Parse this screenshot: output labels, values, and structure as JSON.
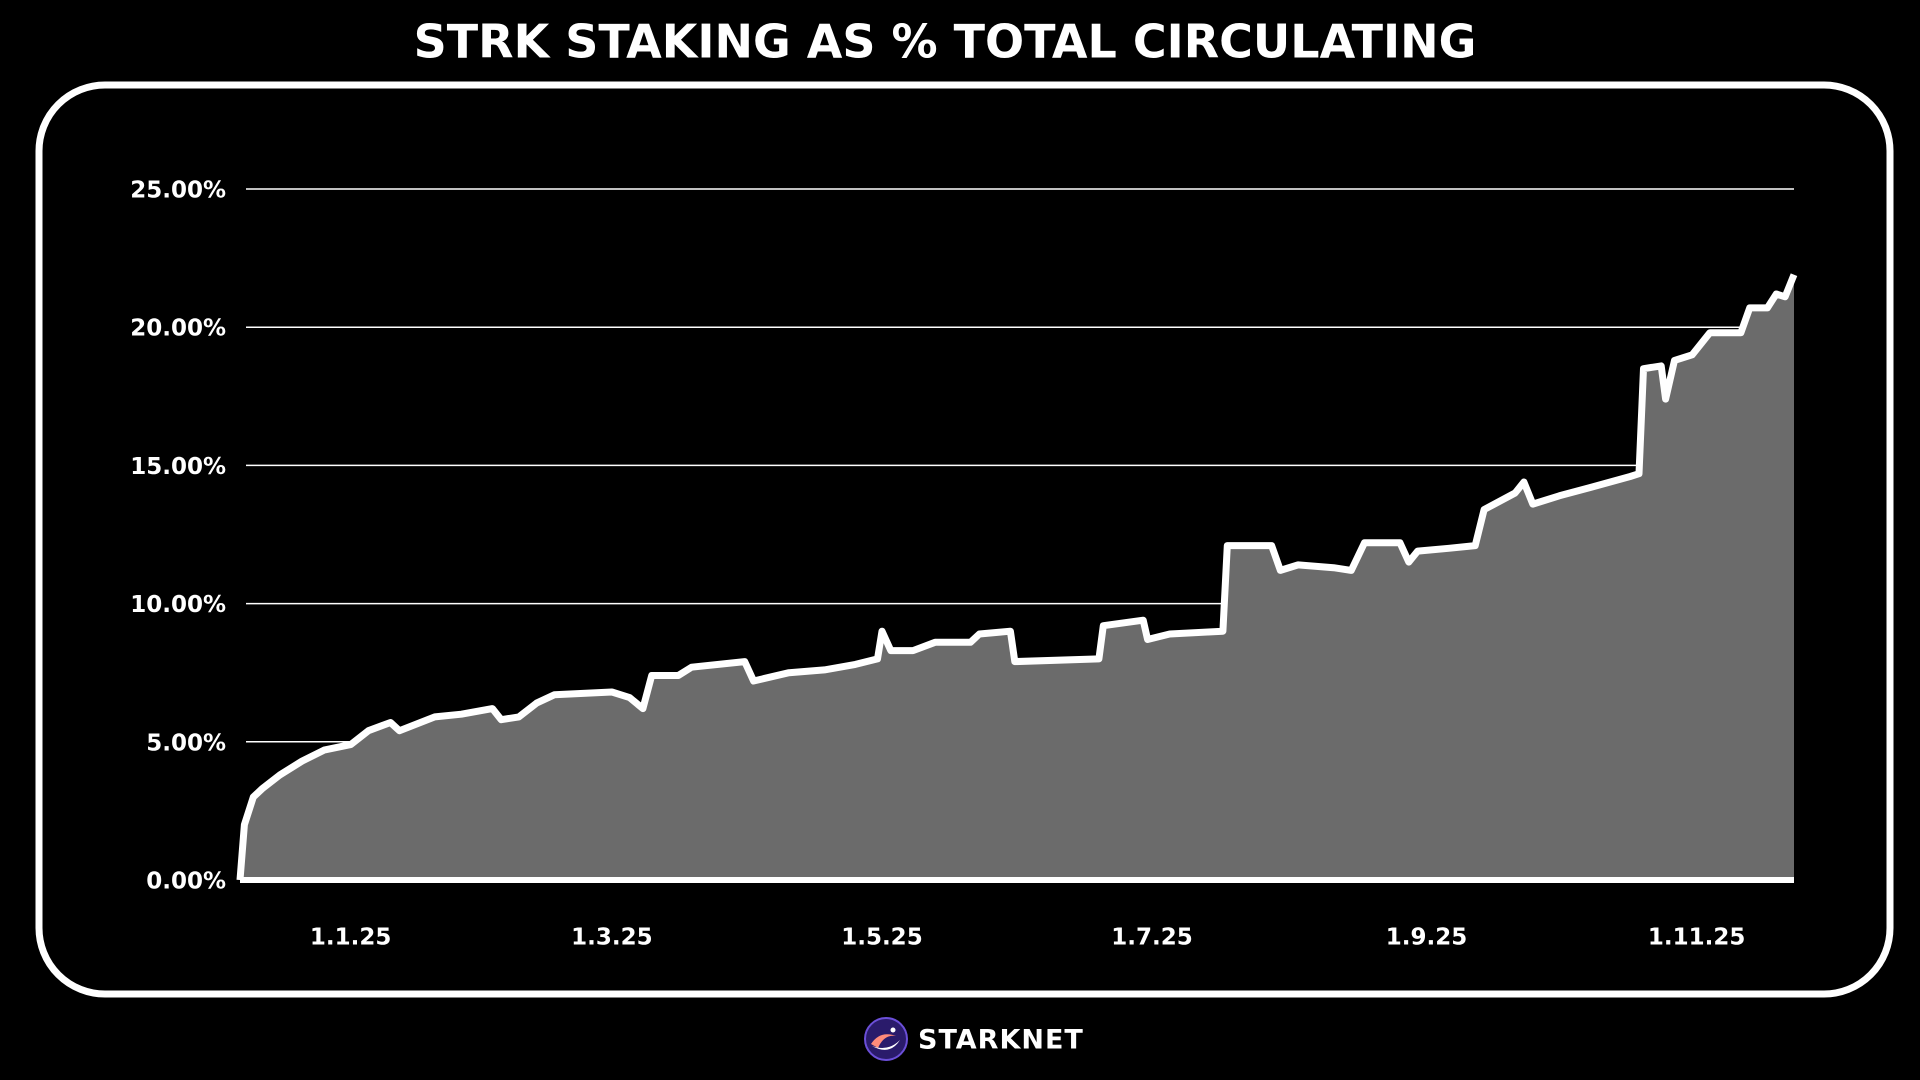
{
  "chart_data": {
    "type": "area",
    "title": "STRK STAKING AS % TOTAL CIRCULATING",
    "brand": "STARKNET",
    "color": "#6b6b6b",
    "line_color": "#ffffff",
    "grid": true,
    "x": [
      "2024-12-07",
      "2024-12-08",
      "2024-12-10",
      "2024-12-12",
      "2024-12-16",
      "2024-12-21",
      "2024-12-26",
      "2025-01-01",
      "2025-01-05",
      "2025-01-10",
      "2025-01-12",
      "2025-01-20",
      "2025-01-26",
      "2025-02-02",
      "2025-02-04",
      "2025-02-08",
      "2025-02-12",
      "2025-02-16",
      "2025-03-01",
      "2025-03-05",
      "2025-03-08",
      "2025-03-10",
      "2025-03-16",
      "2025-03-19",
      "2025-03-31",
      "2025-04-02",
      "2025-04-10",
      "2025-04-18",
      "2025-04-25",
      "2025-04-30",
      "2025-05-01",
      "2025-05-03",
      "2025-05-08",
      "2025-05-13",
      "2025-05-21",
      "2025-05-23",
      "2025-05-30",
      "2025-05-31",
      "2025-06-19",
      "2025-06-20",
      "2025-06-29",
      "2025-06-30",
      "2025-07-05",
      "2025-07-17",
      "2025-07-18",
      "2025-07-28",
      "2025-07-30",
      "2025-08-03",
      "2025-08-11",
      "2025-08-15",
      "2025-08-18",
      "2025-08-26",
      "2025-08-28",
      "2025-08-30",
      "2025-09-06",
      "2025-09-12",
      "2025-09-14",
      "2025-09-21",
      "2025-09-23",
      "2025-09-25",
      "2025-10-01",
      "2025-10-08",
      "2025-10-17",
      "2025-10-19",
      "2025-10-20",
      "2025-10-24",
      "2025-10-25",
      "2025-10-27",
      "2025-10-31",
      "2025-11-04",
      "2025-11-11",
      "2025-11-13",
      "2025-11-17",
      "2025-11-19",
      "2025-11-21",
      "2025-11-23"
    ],
    "values": [
      0,
      2.0,
      3.0,
      3.3,
      3.8,
      4.3,
      4.7,
      4.9,
      5.4,
      5.7,
      5.4,
      5.9,
      6.0,
      6.2,
      5.8,
      5.9,
      6.4,
      6.7,
      6.8,
      6.6,
      6.2,
      7.4,
      7.4,
      7.7,
      7.9,
      7.2,
      7.5,
      7.6,
      7.8,
      8.0,
      9.0,
      8.3,
      8.3,
      8.6,
      8.6,
      8.9,
      9.0,
      7.9,
      8.0,
      9.2,
      9.4,
      8.7,
      8.9,
      9.0,
      12.1,
      12.1,
      11.2,
      11.4,
      11.3,
      11.2,
      12.2,
      12.2,
      11.5,
      11.9,
      12.0,
      12.1,
      13.4,
      14.0,
      14.4,
      13.6,
      13.9,
      14.2,
      14.6,
      14.7,
      18.5,
      18.6,
      17.4,
      18.8,
      19.0,
      19.8,
      19.8,
      20.7,
      20.7,
      21.2,
      21.1,
      21.9
    ],
    "xlim": [
      "2024-12-07",
      "2025-11-23"
    ],
    "xticks": [
      {
        "value": "2025-01-01",
        "label": "1.1.25"
      },
      {
        "value": "2025-03-01",
        "label": "1.3.25"
      },
      {
        "value": "2025-05-01",
        "label": "1.5.25"
      },
      {
        "value": "2025-07-01",
        "label": "1.7.25"
      },
      {
        "value": "2025-09-01",
        "label": "1.9.25"
      },
      {
        "value": "2025-11-01",
        "label": "1.11.25"
      }
    ],
    "ylim": [
      0,
      25
    ],
    "yticks": [
      {
        "value": 0,
        "label": "0.00%"
      },
      {
        "value": 5,
        "label": "5.00%"
      },
      {
        "value": 10,
        "label": "10.00%"
      },
      {
        "value": 15,
        "label": "15.00%"
      },
      {
        "value": 20,
        "label": "20.00%"
      },
      {
        "value": 25,
        "label": "25.00%"
      }
    ]
  }
}
